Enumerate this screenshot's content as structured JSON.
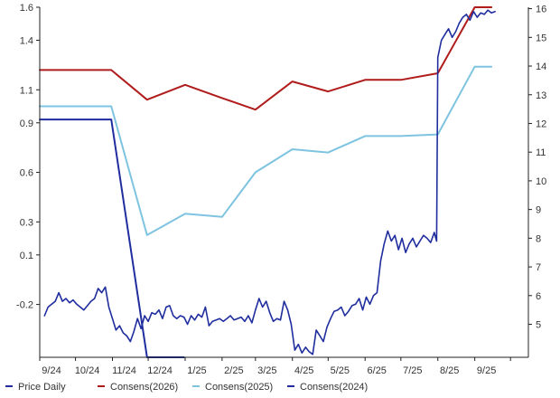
{
  "chart_data": {
    "type": "line",
    "left_axis": {
      "ticks": [
        1.6,
        1.4,
        1.1,
        0.9,
        0.6,
        0.3,
        0.1,
        -0.2
      ],
      "tick_labels": [
        "1.6",
        "1.4",
        "1.1",
        "0.9",
        "0.6",
        "0.3",
        "0.1",
        "-0.2"
      ],
      "range": [
        -0.52,
        1.6
      ]
    },
    "right_axis": {
      "ticks": [
        16,
        15,
        14,
        13,
        12,
        11,
        10,
        9,
        8,
        7,
        6,
        5
      ],
      "tick_labels": [
        "16",
        "15",
        "14",
        "13",
        "12",
        "11",
        "10",
        "9",
        "8",
        "7",
        "6",
        "5"
      ],
      "range": [
        3.85,
        16.05
      ]
    },
    "x_axis": {
      "tick_labels": [
        "9/24",
        "10/24",
        "11/24",
        "12/24",
        "1/25",
        "2/25",
        "3/25",
        "4/25",
        "5/25",
        "6/25",
        "7/25",
        "8/25",
        "9/25"
      ],
      "range": [
        "2024-09-01",
        "2025-10-16"
      ]
    },
    "grid": false,
    "legend_position": "bottom",
    "colors": {
      "price": "#1f2d9e",
      "consens_2026": "#b01c1c",
      "consens_2025": "#7ec4e0",
      "consens_2024": "#1f2d9e",
      "axis": "#222222"
    },
    "series": [
      {
        "name": "Price Daily",
        "axis": "right",
        "x": [
          "2024-09-05",
          "2024-09-08",
          "2024-09-11",
          "2024-09-14",
          "2024-09-17",
          "2024-09-20",
          "2024-09-23",
          "2024-09-26",
          "2024-09-29",
          "2024-10-02",
          "2024-10-05",
          "2024-10-08",
          "2024-10-11",
          "2024-10-14",
          "2024-10-17",
          "2024-10-20",
          "2024-10-23",
          "2024-10-26",
          "2024-10-29",
          "2024-11-01",
          "2024-11-04",
          "2024-11-07",
          "2024-11-10",
          "2024-11-13",
          "2024-11-16",
          "2024-11-19",
          "2024-11-22",
          "2024-11-25",
          "2024-11-28",
          "2024-12-01",
          "2024-12-04",
          "2024-12-07",
          "2024-12-10",
          "2024-12-13",
          "2024-12-16",
          "2024-12-19",
          "2024-12-22",
          "2024-12-25",
          "2024-12-28",
          "2024-12-31",
          "2025-01-03",
          "2025-01-06",
          "2025-01-09",
          "2025-01-12",
          "2025-01-15",
          "2025-01-18",
          "2025-01-21",
          "2025-01-24",
          "2025-01-27",
          "2025-01-30",
          "2025-02-02",
          "2025-02-05",
          "2025-02-08",
          "2025-02-11",
          "2025-02-14",
          "2025-02-17",
          "2025-02-20",
          "2025-02-23",
          "2025-02-26",
          "2025-03-01",
          "2025-03-04",
          "2025-03-07",
          "2025-03-10",
          "2025-03-13",
          "2025-03-16",
          "2025-03-19",
          "2025-03-22",
          "2025-03-25",
          "2025-03-28",
          "2025-03-31",
          "2025-04-03",
          "2025-04-06",
          "2025-04-09",
          "2025-04-12",
          "2025-04-15",
          "2025-04-18",
          "2025-04-21",
          "2025-04-24",
          "2025-04-27",
          "2025-04-30",
          "2025-05-03",
          "2025-05-06",
          "2025-05-09",
          "2025-05-12",
          "2025-05-15",
          "2025-05-18",
          "2025-05-21",
          "2025-05-24",
          "2025-05-27",
          "2025-05-30",
          "2025-06-02",
          "2025-06-05",
          "2025-06-08",
          "2025-06-11",
          "2025-06-14",
          "2025-06-17",
          "2025-06-20",
          "2025-06-23",
          "2025-06-26",
          "2025-06-29",
          "2025-07-02",
          "2025-07-05",
          "2025-07-08",
          "2025-07-11",
          "2025-07-14",
          "2025-07-17",
          "2025-07-20",
          "2025-07-23",
          "2025-07-26",
          "2025-07-29",
          "2025-07-31",
          "2025-08-01",
          "2025-08-04",
          "2025-08-07",
          "2025-08-10",
          "2025-08-13",
          "2025-08-16",
          "2025-08-19",
          "2025-08-22",
          "2025-08-25",
          "2025-08-28",
          "2025-08-31",
          "2025-09-03",
          "2025-09-06",
          "2025-09-09",
          "2025-09-12",
          "2025-09-15",
          "2025-09-18"
        ],
        "values": [
          5.3,
          5.6,
          5.7,
          5.8,
          6.1,
          5.8,
          5.9,
          5.75,
          5.85,
          5.7,
          5.6,
          5.5,
          5.65,
          5.8,
          5.9,
          6.25,
          6.1,
          6.3,
          5.6,
          5.2,
          4.8,
          4.95,
          4.7,
          4.6,
          4.4,
          4.75,
          5.2,
          4.85,
          5.3,
          5.1,
          5.4,
          5.35,
          5.5,
          5.2,
          5.6,
          5.65,
          5.3,
          5.2,
          5.3,
          5.25,
          5.0,
          5.3,
          5.15,
          5.35,
          5.25,
          5.6,
          4.95,
          5.1,
          5.15,
          5.2,
          5.1,
          5.2,
          5.3,
          5.15,
          5.2,
          5.25,
          5.1,
          5.3,
          5.05,
          5.5,
          5.9,
          5.6,
          5.8,
          5.4,
          5.1,
          5.2,
          5.15,
          5.8,
          5.5,
          5.0,
          4.1,
          4.3,
          4.0,
          4.2,
          4.05,
          3.95,
          4.8,
          4.6,
          4.4,
          4.9,
          5.2,
          5.45,
          5.5,
          5.6,
          5.3,
          5.45,
          5.65,
          5.7,
          5.9,
          5.5,
          5.95,
          5.7,
          6.0,
          6.1,
          7.2,
          7.8,
          8.25,
          7.9,
          8.1,
          7.6,
          8.0,
          7.5,
          7.8,
          8.0,
          7.7,
          7.9,
          8.1,
          8.0,
          7.85,
          8.2,
          7.9,
          14.3,
          14.9,
          15.1,
          15.3,
          15.0,
          15.2,
          15.5,
          15.7,
          15.8,
          15.6,
          15.9,
          15.7,
          15.85,
          15.8,
          15.95,
          15.85,
          15.9
        ]
      },
      {
        "name": "Consens(2026)",
        "axis": "left",
        "x": [
          "2024-09-01",
          "2024-10-31",
          "2024-11-30",
          "2025-01-01",
          "2025-02-01",
          "2025-03-01",
          "2025-04-01",
          "2025-05-01",
          "2025-06-01",
          "2025-07-01",
          "2025-08-01",
          "2025-09-01",
          "2025-09-15"
        ],
        "values": [
          1.22,
          1.22,
          1.04,
          1.13,
          1.05,
          0.98,
          1.15,
          1.09,
          1.16,
          1.16,
          1.2,
          1.6,
          1.6
        ]
      },
      {
        "name": "Consens(2025)",
        "axis": "left",
        "x": [
          "2024-09-01",
          "2024-10-31",
          "2024-11-30",
          "2025-01-01",
          "2025-02-01",
          "2025-03-01",
          "2025-04-01",
          "2025-05-01",
          "2025-06-01",
          "2025-07-01",
          "2025-08-01",
          "2025-09-01",
          "2025-09-15"
        ],
        "values": [
          1.0,
          1.0,
          0.22,
          0.35,
          0.33,
          0.6,
          0.74,
          0.72,
          0.82,
          0.82,
          0.83,
          1.24,
          1.24
        ]
      },
      {
        "name": "Consens(2024)",
        "axis": "left",
        "x": [
          "2024-09-01",
          "2024-10-31",
          "2024-11-30",
          "2024-12-31"
        ],
        "values": [
          0.92,
          0.92,
          -0.52,
          -0.52
        ]
      }
    ]
  }
}
